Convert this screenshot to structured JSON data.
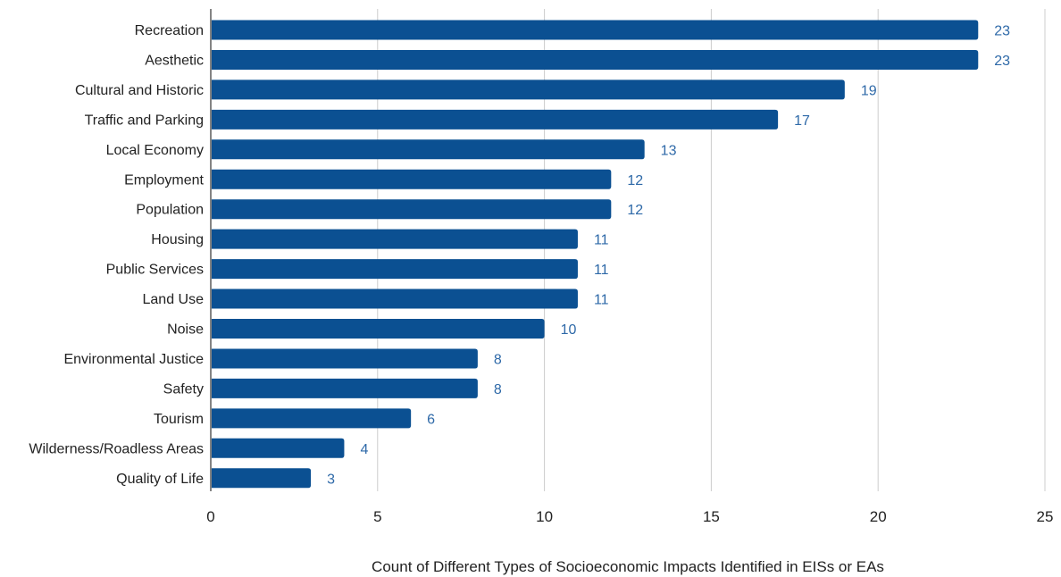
{
  "chart_data": {
    "type": "bar",
    "orientation": "horizontal",
    "categories": [
      "Recreation",
      "Aesthetic",
      "Cultural and Historic",
      "Traffic and Parking",
      "Local Economy",
      "Employment",
      "Population",
      "Housing",
      "Public Services",
      "Land Use",
      "Noise",
      "Environmental Justice",
      "Safety",
      "Tourism",
      "Wilderness/Roadless Areas",
      "Quality of Life"
    ],
    "values": [
      23,
      23,
      19,
      17,
      13,
      12,
      12,
      11,
      11,
      11,
      10,
      8,
      8,
      6,
      4,
      3
    ],
    "title": "",
    "xlabel": "Count of Different Types of Socioeconomic Impacts Identified in EISs or EAs",
    "ylabel": "",
    "xlim": [
      0,
      25
    ],
    "xticks": [
      0,
      5,
      10,
      15,
      20,
      25
    ],
    "grid": "vertical",
    "legend": "none",
    "data_labels": true
  },
  "colors": {
    "bar": "#0b5092",
    "value_label": "#2e69a8",
    "grid": "#cccccc",
    "axis": "#333333"
  }
}
